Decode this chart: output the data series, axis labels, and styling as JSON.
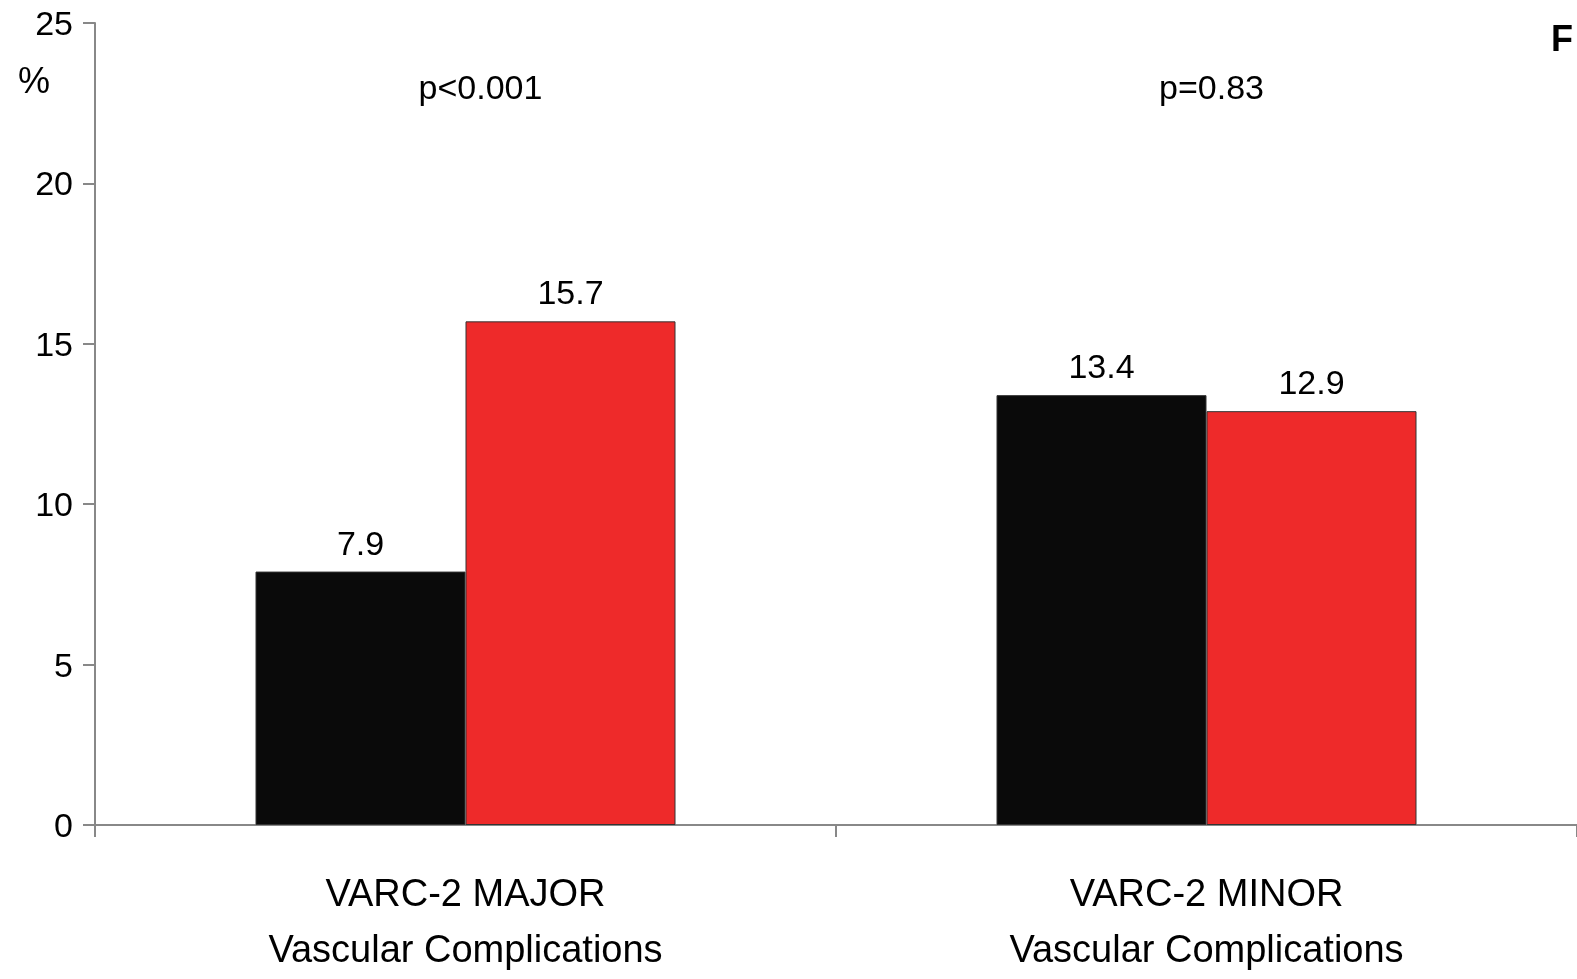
{
  "chart_data": {
    "type": "bar",
    "categories": [
      "VARC-2 MAJOR\nVascular Complications",
      "VARC-2 MINOR\nVascular Complications"
    ],
    "series": [
      {
        "color": "#0a0a0a",
        "values": [
          7.9,
          13.4
        ]
      },
      {
        "color": "#ee2a2a",
        "values": [
          15.7,
          12.9
        ]
      }
    ],
    "ylabel": "%",
    "ylim": [
      0,
      25
    ],
    "yticks": [
      0,
      5,
      10,
      15,
      20,
      25
    ],
    "grid": false,
    "data_labels": true,
    "annotations": [
      "p<0.001",
      "p=0.83",
      "F"
    ]
  }
}
